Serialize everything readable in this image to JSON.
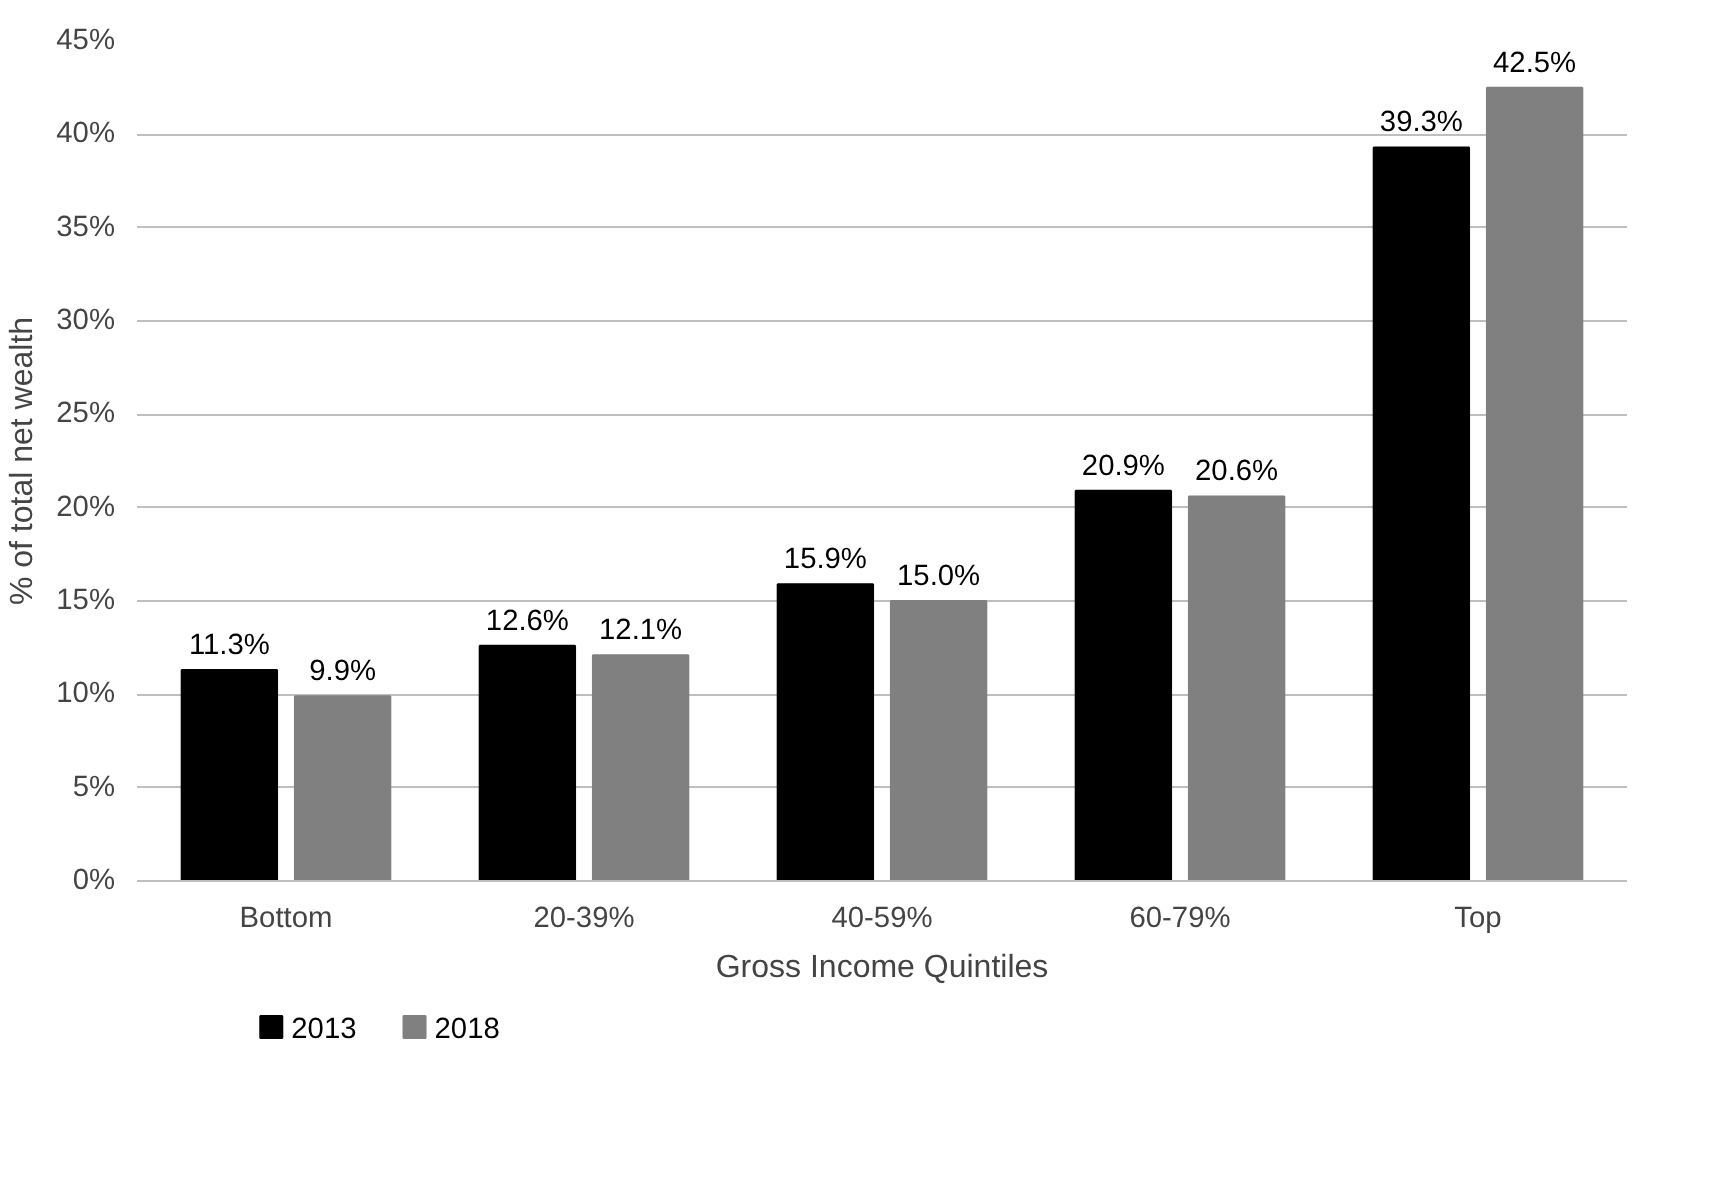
{
  "chart_data": {
    "type": "bar",
    "xlabel": "Gross Income Quintiles",
    "ylabel": "% of total net wealth",
    "categories": [
      "Bottom",
      "20-39%",
      "40-59%",
      "60-79%",
      "Top"
    ],
    "series": [
      {
        "name": "2013",
        "color": "#000000",
        "values": [
          11.3,
          12.6,
          15.9,
          20.9,
          39.3
        ],
        "value_labels": [
          "11.3%",
          "12.6%",
          "15.9%",
          "20.9%",
          "39.3%"
        ]
      },
      {
        "name": "2018",
        "color": "#808080",
        "values": [
          9.9,
          12.1,
          15.0,
          20.6,
          42.5
        ],
        "value_labels": [
          "9.9%",
          "12.1%",
          "15.0%",
          "20.6%",
          "42.5%"
        ]
      }
    ],
    "ylim": [
      0,
      45
    ],
    "yticks": [
      {
        "value": 0,
        "label": "0%"
      },
      {
        "value": 5,
        "label": "5%"
      },
      {
        "value": 10,
        "label": "10%"
      },
      {
        "value": 15,
        "label": "15%"
      },
      {
        "value": 20,
        "label": "20%"
      },
      {
        "value": 25,
        "label": "25%"
      },
      {
        "value": 30,
        "label": "30%"
      },
      {
        "value": 35,
        "label": "35%"
      },
      {
        "value": 40,
        "label": "40%"
      },
      {
        "value": 45,
        "label": "45%"
      }
    ],
    "grid": "y",
    "legend": "bottom left"
  }
}
